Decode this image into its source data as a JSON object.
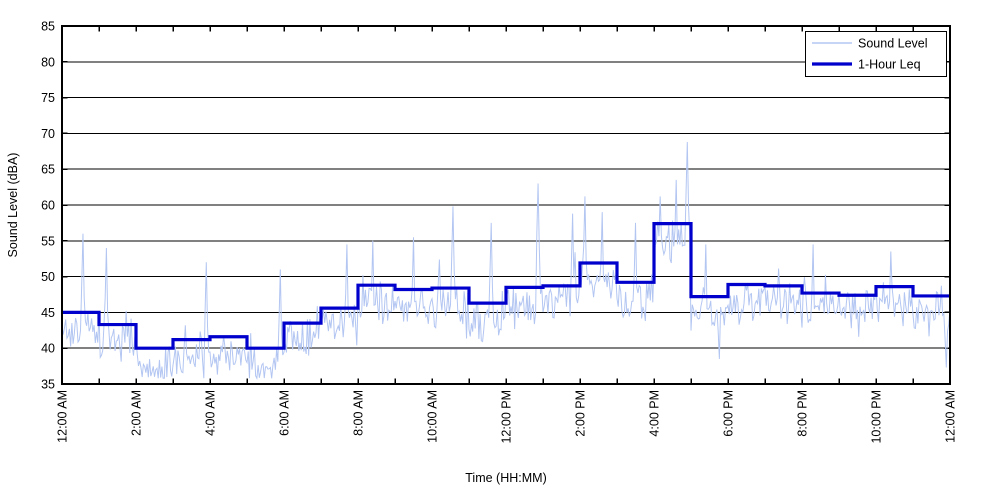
{
  "figure": {
    "background": "#ffffff",
    "grid_color": "#000000",
    "axis_color": "#000000"
  },
  "chart_data": {
    "type": "line",
    "title": "",
    "xlabel": "Time (HH:MM)",
    "ylabel": "Sound Level (dBA)",
    "ylim": [
      35,
      85
    ],
    "yticks": [
      35,
      40,
      45,
      50,
      55,
      60,
      65,
      70,
      75,
      80,
      85
    ],
    "xlim_hours": [
      0,
      24
    ],
    "x_minor_tick_hours": 1,
    "xtick_hours": [
      0,
      2,
      4,
      6,
      8,
      10,
      12,
      14,
      16,
      18,
      20,
      22,
      24
    ],
    "xtick_labels": [
      "12:00 AM",
      "2:00 AM",
      "4:00 AM",
      "6:00 AM",
      "8:00 AM",
      "10:00 AM",
      "12:00 PM",
      "2:00 PM",
      "4:00 PM",
      "6:00 PM",
      "8:00 PM",
      "10:00 PM",
      "12:00 AM"
    ],
    "grid": true,
    "legend_position": "top-right",
    "series": [
      {
        "name": "Sound Level",
        "color": "#b3c6f2",
        "style": "noisy minute-level trace",
        "synthesis": {
          "samples_per_hour": 30,
          "seed": 13,
          "baseline_offset": -2.3,
          "noise_amplitude": 3.6,
          "spike_probability": 0.07,
          "spike_max": 8.5,
          "dip_probability": 0.05,
          "dip_max": 4,
          "clamp": [
            35.8,
            68.8
          ]
        },
        "notable_peaks": [
          [
            0.55,
            56.0
          ],
          [
            1.2,
            54.0
          ],
          [
            3.9,
            52.0
          ],
          [
            5.9,
            51.0
          ],
          [
            7.7,
            54.5
          ],
          [
            8.4,
            55.0
          ],
          [
            9.5,
            55.5
          ],
          [
            10.55,
            59.8
          ],
          [
            11.6,
            57.5
          ],
          [
            12.88,
            63.0
          ],
          [
            13.8,
            58.8
          ],
          [
            14.12,
            61.2
          ],
          [
            14.6,
            59.0
          ],
          [
            15.5,
            57.5
          ],
          [
            16.16,
            61.2
          ],
          [
            16.6,
            63.5
          ],
          [
            16.9,
            68.8
          ],
          [
            17.4,
            54.5
          ],
          [
            20.3,
            54.5
          ],
          [
            22.4,
            53.5
          ]
        ],
        "notable_dips": [
          [
            2.5,
            36.0
          ],
          [
            5.75,
            37.0
          ],
          [
            17.75,
            38.5
          ],
          [
            23.9,
            37.3
          ]
        ]
      },
      {
        "name": "1-Hour Leq",
        "color": "#0000cc",
        "style": "hourly step line",
        "hourly_values": [
          45.0,
          43.3,
          40.0,
          41.2,
          41.6,
          40.0,
          43.5,
          45.6,
          48.8,
          48.2,
          48.4,
          46.3,
          48.5,
          48.7,
          51.9,
          49.2,
          57.4,
          47.2,
          48.9,
          48.7,
          47.7,
          47.4,
          48.6,
          47.3
        ]
      }
    ]
  }
}
